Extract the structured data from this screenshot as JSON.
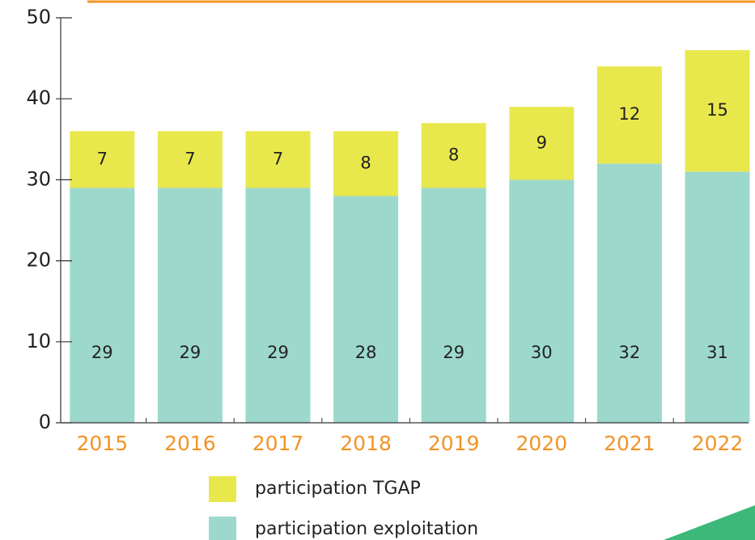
{
  "chart_data": {
    "type": "stacked_bar",
    "categories": [
      "2015",
      "2016",
      "2017",
      "2018",
      "2019",
      "2020",
      "2021",
      "2022"
    ],
    "series": [
      {
        "name": "participation exploitation",
        "color": "#9dd8cc",
        "values": [
          29,
          29,
          29,
          28,
          29,
          30,
          32,
          31
        ]
      },
      {
        "name": "participation TGAP",
        "color": "#e8e84c",
        "values": [
          7,
          7,
          7,
          8,
          8,
          9,
          12,
          15
        ]
      }
    ],
    "ylim": [
      0,
      50
    ],
    "yticks": [
      0,
      10,
      20,
      30,
      40,
      50
    ]
  }
}
